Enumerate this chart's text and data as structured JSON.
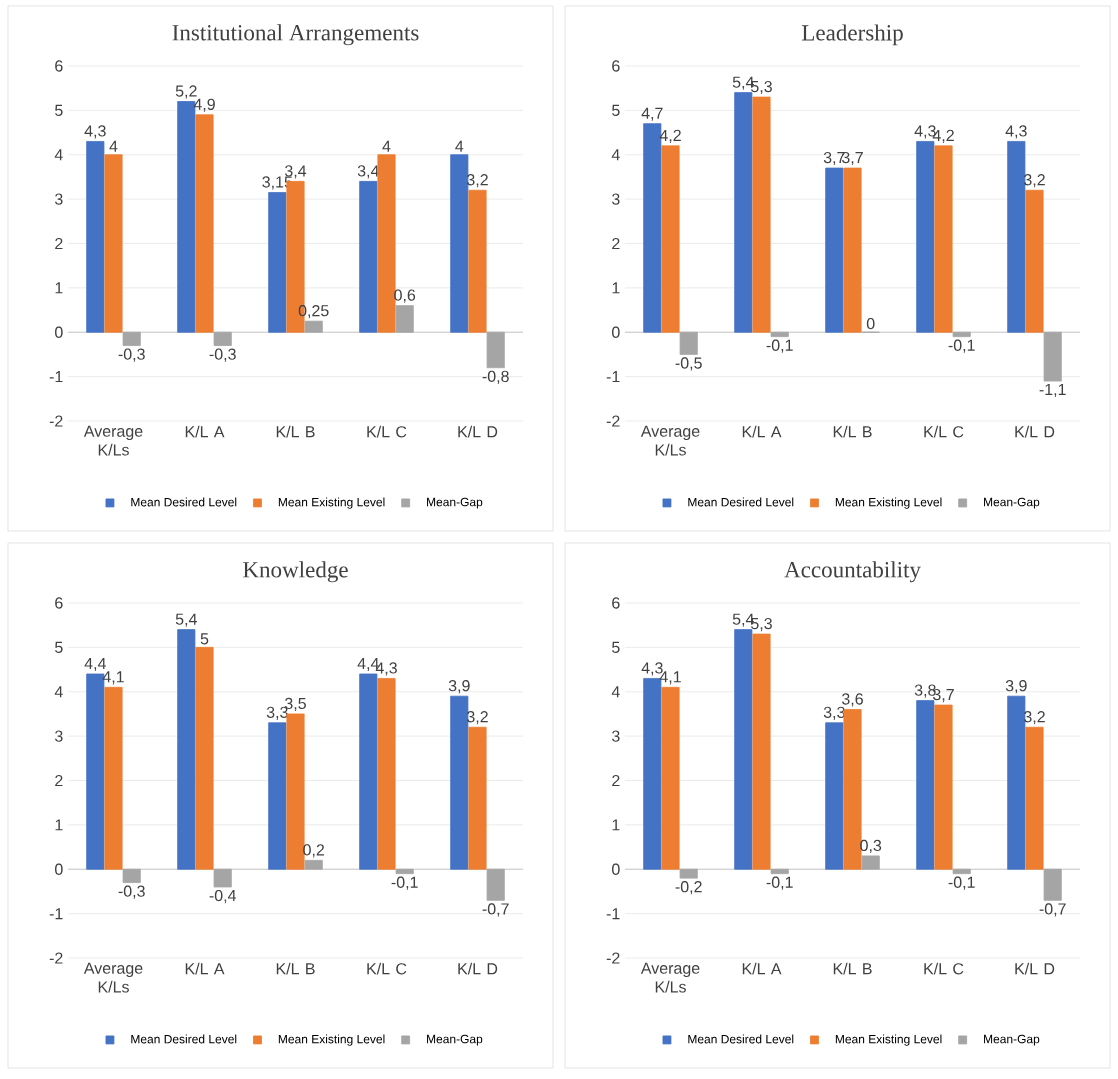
{
  "chart_data": [
    {
      "type": "bar",
      "title": "Institutional Arrangements",
      "categories": [
        "Average K/Ls",
        "K/L A",
        "K/L B",
        "K/L C",
        "K/L D"
      ],
      "ylim": [
        -2,
        6
      ],
      "yticks": [
        -2,
        -1,
        0,
        1,
        2,
        3,
        4,
        5,
        6
      ],
      "grid": "y",
      "legend": "bottom",
      "series": [
        {
          "name": "Mean Desired Level",
          "color": "#4472c4",
          "values": [
            4.3,
            5.2,
            3.15,
            3.4,
            4
          ],
          "value_labels": [
            "4,3",
            "5,2",
            "3,15",
            "3,4",
            "4"
          ]
        },
        {
          "name": "Mean Existing Level",
          "color": "#ed7d31",
          "values": [
            4,
            4.9,
            3.4,
            4,
            3.2
          ],
          "value_labels": [
            "4",
            "4,9",
            "3,4",
            "4",
            "3,2"
          ]
        },
        {
          "name": "Mean-Gap",
          "color": "#a5a5a5",
          "values": [
            -0.3,
            -0.3,
            0.25,
            0.6,
            -0.8
          ],
          "value_labels": [
            "-0,3",
            "-0,3",
            "0,25",
            "0,6",
            "-0,8"
          ]
        }
      ]
    },
    {
      "type": "bar",
      "title": "Leadership",
      "categories": [
        "Average K/Ls",
        "K/L A",
        "K/L B",
        "K/L C",
        "K/L D"
      ],
      "ylim": [
        -2,
        6
      ],
      "yticks": [
        -2,
        -1,
        0,
        1,
        2,
        3,
        4,
        5,
        6
      ],
      "grid": "y",
      "legend": "bottom",
      "series": [
        {
          "name": "Mean Desired Level",
          "color": "#4472c4",
          "values": [
            4.7,
            5.4,
            3.7,
            4.3,
            4.3
          ],
          "value_labels": [
            "4,7",
            "5,4",
            "3,7",
            "4,3",
            "4,3"
          ]
        },
        {
          "name": "Mean Existing Level",
          "color": "#ed7d31",
          "values": [
            4.2,
            5.3,
            3.7,
            4.2,
            3.2
          ],
          "value_labels": [
            "4,2",
            "5,3",
            "3,7",
            "4,2",
            "3,2"
          ]
        },
        {
          "name": "Mean-Gap",
          "color": "#a5a5a5",
          "values": [
            -0.5,
            -0.1,
            0,
            -0.1,
            -1.1
          ],
          "value_labels": [
            "-0,5",
            "-0,1",
            "0",
            "-0,1",
            "-1,1"
          ]
        }
      ]
    },
    {
      "type": "bar",
      "title": "Knowledge",
      "categories": [
        "Average K/Ls",
        "K/L A",
        "K/L B",
        "K/L C",
        "K/L D"
      ],
      "ylim": [
        -2,
        6
      ],
      "yticks": [
        -2,
        -1,
        0,
        1,
        2,
        3,
        4,
        5,
        6
      ],
      "grid": "y",
      "legend": "bottom",
      "series": [
        {
          "name": "Mean Desired Level",
          "color": "#4472c4",
          "values": [
            4.4,
            5.4,
            3.3,
            4.4,
            3.9
          ],
          "value_labels": [
            "4,4",
            "5,4",
            "3,3",
            "4,4",
            "3,9"
          ]
        },
        {
          "name": "Mean Existing Level",
          "color": "#ed7d31",
          "values": [
            4.1,
            5,
            3.5,
            4.3,
            3.2
          ],
          "value_labels": [
            "4,1",
            "5",
            "3,5",
            "4,3",
            "3,2"
          ]
        },
        {
          "name": "Mean-Gap",
          "color": "#a5a5a5",
          "values": [
            -0.3,
            -0.4,
            0.2,
            -0.1,
            -0.7
          ],
          "value_labels": [
            "-0,3",
            "-0,4",
            "0,2",
            "-0,1",
            "-0,7"
          ]
        }
      ]
    },
    {
      "type": "bar",
      "title": "Accountability",
      "categories": [
        "Average K/Ls",
        "K/L A",
        "K/L B",
        "K/L C",
        "K/L D"
      ],
      "ylim": [
        -2,
        6
      ],
      "yticks": [
        -2,
        -1,
        0,
        1,
        2,
        3,
        4,
        5,
        6
      ],
      "grid": "y",
      "legend": "bottom",
      "series": [
        {
          "name": "Mean Desired Level",
          "color": "#4472c4",
          "values": [
            4.3,
            5.4,
            3.3,
            3.8,
            3.9
          ],
          "value_labels": [
            "4,3",
            "5,4",
            "3,3",
            "3,8",
            "3,9"
          ]
        },
        {
          "name": "Mean Existing Level",
          "color": "#ed7d31",
          "values": [
            4.1,
            5.3,
            3.6,
            3.7,
            3.2
          ],
          "value_labels": [
            "4,1",
            "5,3",
            "3,6",
            "3,7",
            "3,2"
          ]
        },
        {
          "name": "Mean-Gap",
          "color": "#a5a5a5",
          "values": [
            -0.2,
            -0.1,
            0.3,
            -0.1,
            -0.7
          ],
          "value_labels": [
            "-0,2",
            "-0,1",
            "0,3",
            "-0,1",
            "-0,7"
          ]
        }
      ]
    }
  ]
}
